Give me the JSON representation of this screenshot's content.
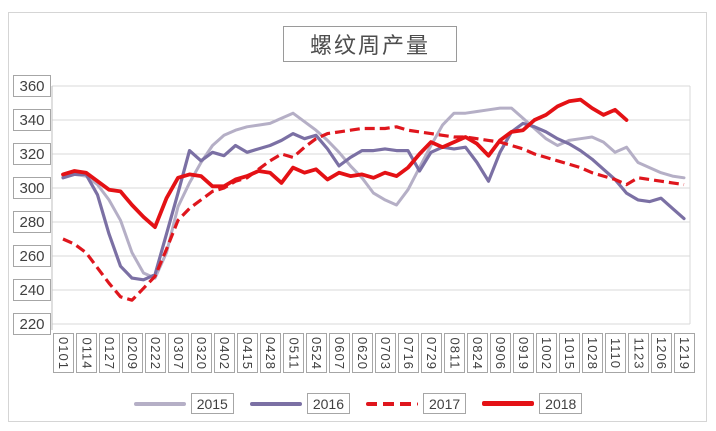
{
  "chart": {
    "title": "螺纹周产量",
    "y_axis_labels": [
      "360",
      "340",
      "320",
      "300",
      "280",
      "260",
      "240",
      "220"
    ],
    "x_axis_labels": [
      "0101",
      "0114",
      "0127",
      "0209",
      "0222",
      "0307",
      "0320",
      "0402",
      "0415",
      "0428",
      "0511",
      "0524",
      "0607",
      "0620",
      "0703",
      "0716",
      "0729",
      "0811",
      "0824",
      "0906",
      "0919",
      "1002",
      "1015",
      "1028",
      "1110",
      "1123",
      "1206",
      "1219"
    ],
    "legend_labels": [
      "2015",
      "2016",
      "2017",
      "2018"
    ],
    "colors": {
      "series_2015": "#b5afc6",
      "series_2016": "#7b70a4",
      "series_2017": "#df161d",
      "series_2018": "#e41115",
      "gridline": "#d9d9d9",
      "axis_line": "#bfbfbf",
      "label_border": "#a6a6a6",
      "text": "#404040"
    }
  },
  "chart_data": {
    "type": "line",
    "title": "螺纹周产量",
    "xlabel": "",
    "ylabel": "",
    "ylim": [
      220,
      360
    ],
    "y_ticks": [
      360,
      340,
      320,
      300,
      280,
      260,
      240,
      220
    ],
    "grid": true,
    "legend_position": "bottom",
    "x_tick_labels": [
      "0101",
      "0114",
      "0127",
      "0209",
      "0222",
      "0307",
      "0320",
      "0402",
      "0415",
      "0428",
      "0511",
      "0524",
      "0607",
      "0620",
      "0703",
      "0716",
      "0729",
      "0811",
      "0824",
      "0906",
      "0919",
      "1002",
      "1015",
      "1028",
      "1110",
      "1123",
      "1206",
      "1219"
    ],
    "x_note": "weekly data, one tick label per two weeks; values indexed week 0..54",
    "series": [
      {
        "name": "2015",
        "color": "#b5afc6",
        "dash": false,
        "width": 3,
        "values": [
          307,
          308,
          307,
          302,
          293,
          281,
          262,
          250,
          247,
          262,
          289,
          303,
          315,
          325,
          331,
          334,
          336,
          337,
          338,
          341,
          344,
          339,
          334,
          328,
          321,
          313,
          306,
          297,
          293,
          290,
          299,
          312,
          325,
          337,
          344,
          344,
          345,
          346,
          347,
          347,
          341,
          335,
          329,
          325,
          328,
          329,
          330,
          327,
          321,
          324,
          315,
          312,
          309,
          307,
          306
        ]
      },
      {
        "name": "2016",
        "color": "#7b70a4",
        "dash": false,
        "width": 3.2,
        "values": [
          306,
          308,
          308,
          296,
          273,
          254,
          247,
          246,
          249,
          273,
          297,
          322,
          316,
          321,
          319,
          325,
          321,
          323,
          325,
          328,
          332,
          329,
          331,
          323,
          313,
          318,
          322,
          322,
          323,
          322,
          322,
          310,
          321,
          324,
          323,
          324,
          315,
          304,
          321,
          333,
          338,
          336,
          333,
          329,
          326,
          322,
          317,
          311,
          305,
          297,
          293,
          292,
          294,
          288,
          282
        ]
      },
      {
        "name": "2017",
        "color": "#df161d",
        "dash": true,
        "width": 3.2,
        "values": [
          270,
          267,
          262,
          253,
          244,
          236,
          234,
          241,
          248,
          264,
          281,
          288,
          293,
          298,
          300,
          304,
          306,
          311,
          316,
          320,
          318,
          324,
          329,
          332,
          333,
          334,
          335,
          335,
          335,
          336,
          334,
          333,
          332,
          331,
          330,
          330,
          329,
          328,
          327,
          325,
          323,
          320,
          318,
          316,
          314,
          312,
          309,
          307,
          305,
          302,
          306,
          305,
          304,
          303,
          302
        ]
      },
      {
        "name": "2018",
        "color": "#e41115",
        "dash": false,
        "width": 3.8,
        "values": [
          308,
          310,
          309,
          304,
          299,
          298,
          290,
          283,
          277,
          294,
          306,
          308,
          307,
          301,
          301,
          305,
          307,
          310,
          309,
          303,
          312,
          309,
          311,
          305,
          309,
          307,
          308,
          306,
          309,
          307,
          312,
          320,
          327,
          324,
          327,
          330,
          326,
          319,
          328,
          333,
          334,
          340,
          343,
          348,
          351,
          352,
          347,
          343,
          346,
          340,
          null,
          null,
          null,
          null,
          null
        ]
      }
    ]
  }
}
